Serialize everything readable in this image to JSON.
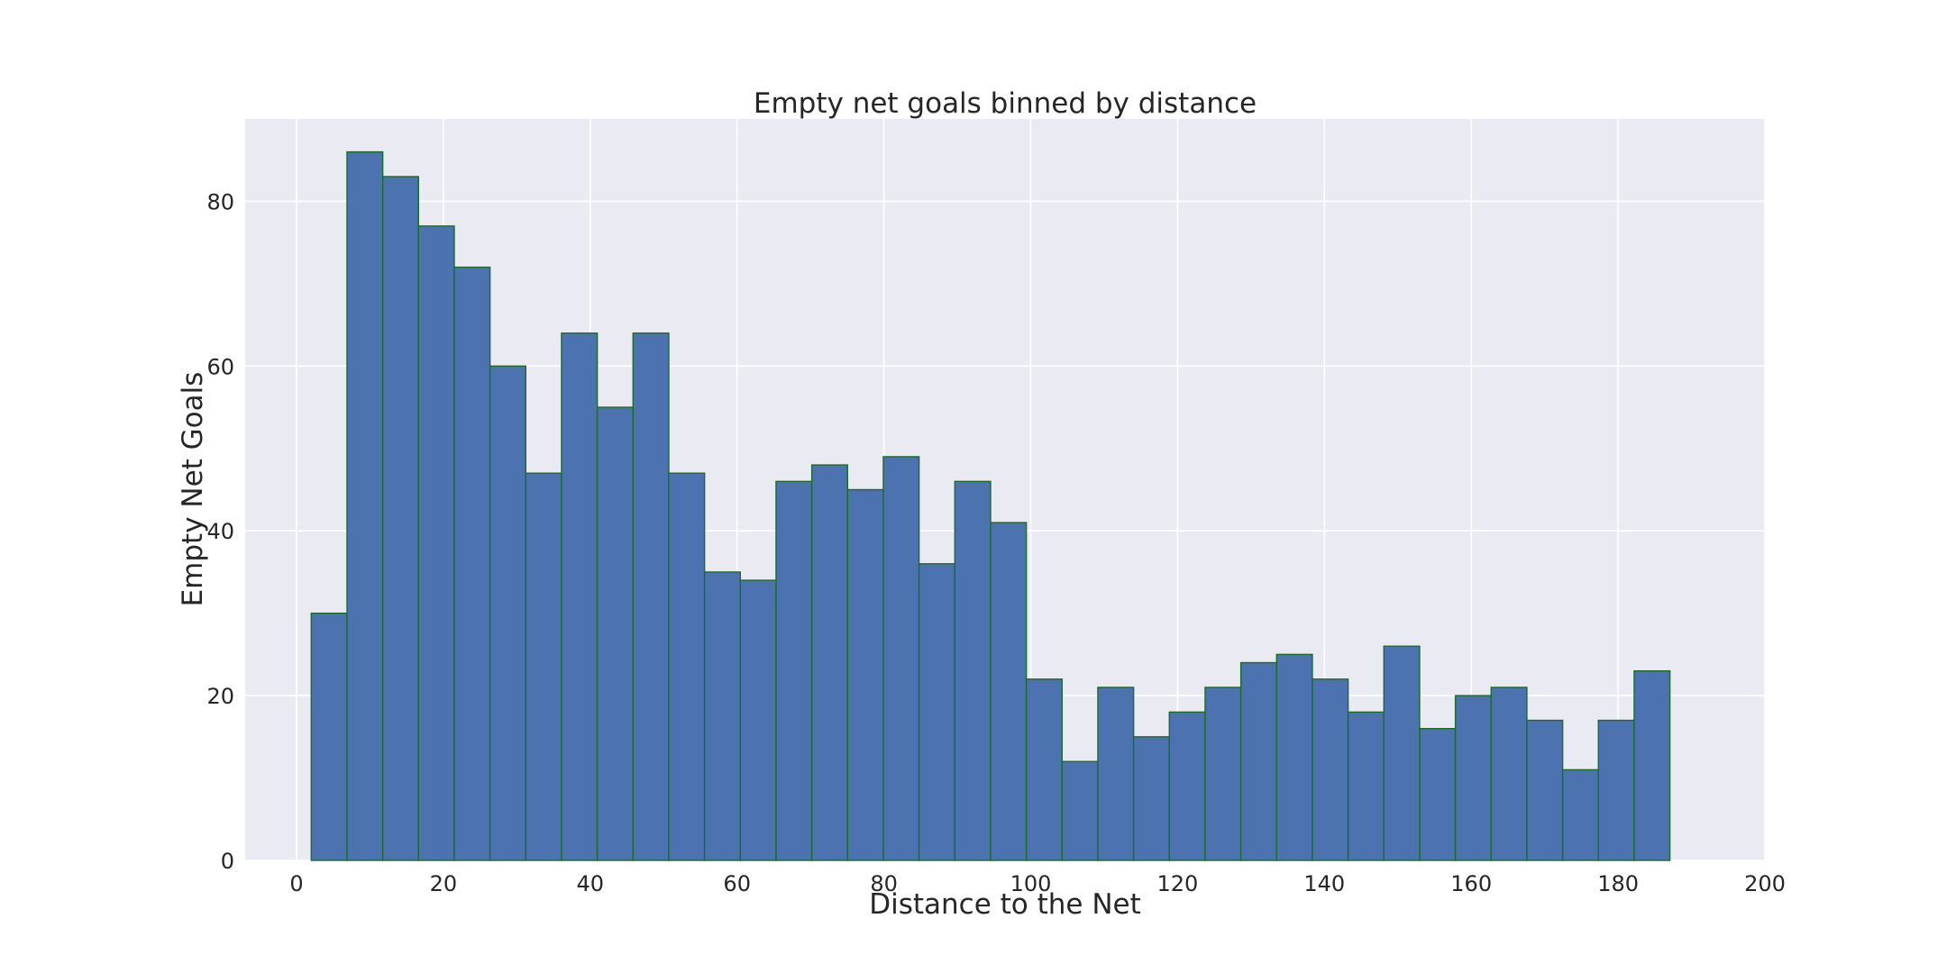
{
  "chart_data": {
    "type": "bar",
    "title": "Empty net goals binned by distance",
    "xlabel": "Distance to the Net",
    "ylabel": "Empty Net Goals",
    "xlim": [
      -7,
      200
    ],
    "ylim": [
      0,
      90
    ],
    "xticks": [
      0,
      20,
      40,
      60,
      80,
      100,
      120,
      140,
      160,
      180,
      200
    ],
    "yticks": [
      0,
      20,
      40,
      60,
      80
    ],
    "grid": true,
    "legend": "none",
    "bar_color": "#4c72b0",
    "edge_color": "#1b6b2f",
    "background_color": "#eaeaf2",
    "bin_start": 2,
    "bin_width": 4.87,
    "values": [
      30,
      86,
      83,
      77,
      72,
      60,
      47,
      64,
      55,
      64,
      47,
      35,
      34,
      46,
      48,
      45,
      49,
      36,
      46,
      41,
      22,
      12,
      21,
      15,
      18,
      21,
      24,
      25,
      22,
      18,
      26,
      16,
      20,
      21,
      17,
      11,
      17,
      23
    ]
  }
}
